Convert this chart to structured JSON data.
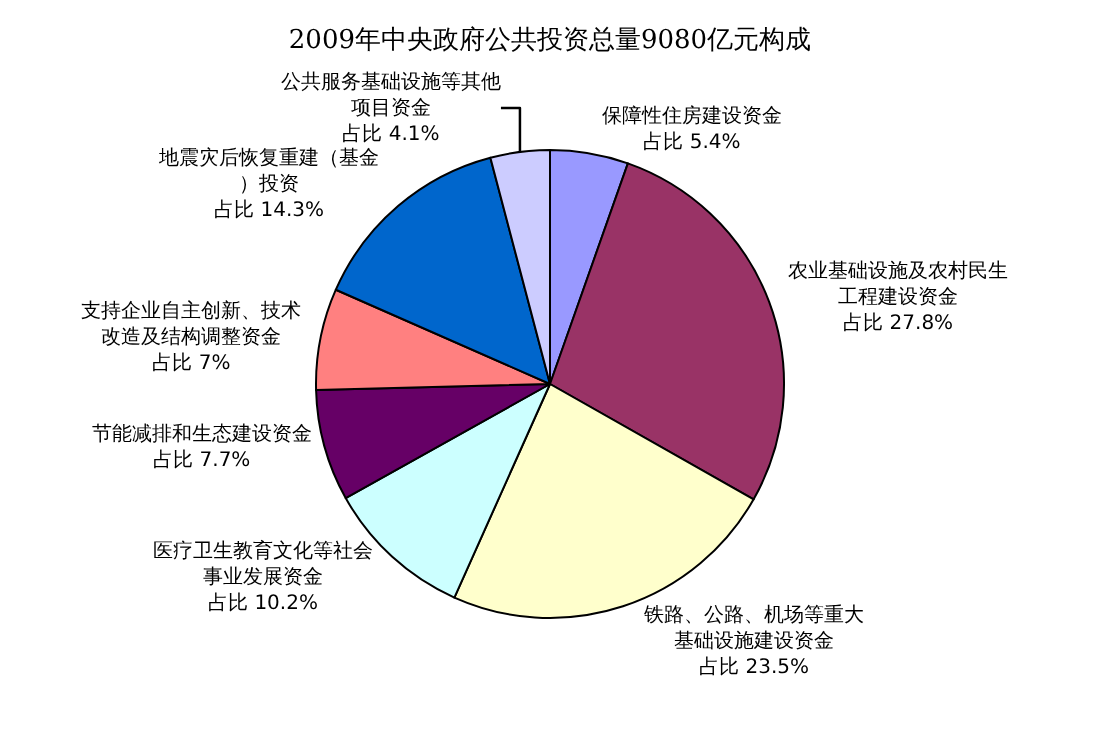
{
  "chart_data": {
    "type": "pie",
    "title": "2009年中央政府公共投资总量9080亿元构成",
    "categories": [
      "保障性住房建设资金",
      "农业基础设施及农村民生工程建设资金",
      "铁路、公路、机场等重大基础设施建设资金",
      "医疗卫生教育文化等社会事业发展资金",
      "节能减排和生态建设资金",
      "支持企业自主创新、技术改造及结构调整资金",
      "地震灾后恢复重建（基金）投资",
      "公共服务基础设施等其他项目资金"
    ],
    "values": [
      5.4,
      27.8,
      23.5,
      10.2,
      7.7,
      7,
      14.3,
      4.1
    ],
    "value_labels": [
      "占比 5.4%",
      "占比 27.8%",
      "占比 23.5%",
      "占比 10.2%",
      "占比 7.7%",
      "占比 7%",
      "占比 14.3%",
      "占比 4.1%"
    ],
    "colors": [
      "#9999ff",
      "#993366",
      "#ffffcc",
      "#ccffff",
      "#660066",
      "#ff8080",
      "#0066cc",
      "#ccccff"
    ],
    "legend": false
  }
}
